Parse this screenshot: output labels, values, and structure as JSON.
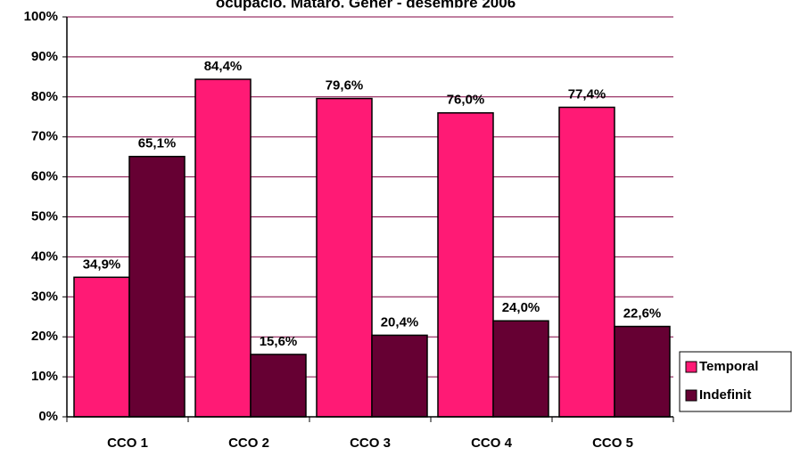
{
  "chart_data": {
    "type": "bar",
    "title": "ocupació. Mataró. Gener - desembre 2006",
    "categories": [
      "CCO 1",
      "CCO 2",
      "CCO 3",
      "CCO 4",
      "CCO 5"
    ],
    "series": [
      {
        "name": "Temporal",
        "color": "#ff1a75",
        "values": [
          34.9,
          84.4,
          79.6,
          76.0,
          77.4
        ],
        "value_labels": [
          "34,9%",
          "84,4%",
          "79,6%",
          "76,0%",
          "77,4%"
        ]
      },
      {
        "name": "Indefinit",
        "color": "#660033",
        "values": [
          65.1,
          15.6,
          20.4,
          24.0,
          22.6
        ],
        "value_labels": [
          "65,1%",
          "15,6%",
          "20,4%",
          "24,0%",
          "22,6%"
        ]
      }
    ],
    "ylim": [
      0,
      100
    ],
    "yticks": [
      {
        "value": 0,
        "label": "0%"
      },
      {
        "value": 10,
        "label": "10%"
      },
      {
        "value": 20,
        "label": "20%"
      },
      {
        "value": 30,
        "label": "30%"
      },
      {
        "value": 40,
        "label": "40%"
      },
      {
        "value": 50,
        "label": "50%"
      },
      {
        "value": 60,
        "label": "60%"
      },
      {
        "value": 70,
        "label": "70%"
      },
      {
        "value": 80,
        "label": "80%"
      },
      {
        "value": 90,
        "label": "90%"
      },
      {
        "value": 100,
        "label": "100%"
      }
    ],
    "grid": true,
    "legend": "right"
  }
}
